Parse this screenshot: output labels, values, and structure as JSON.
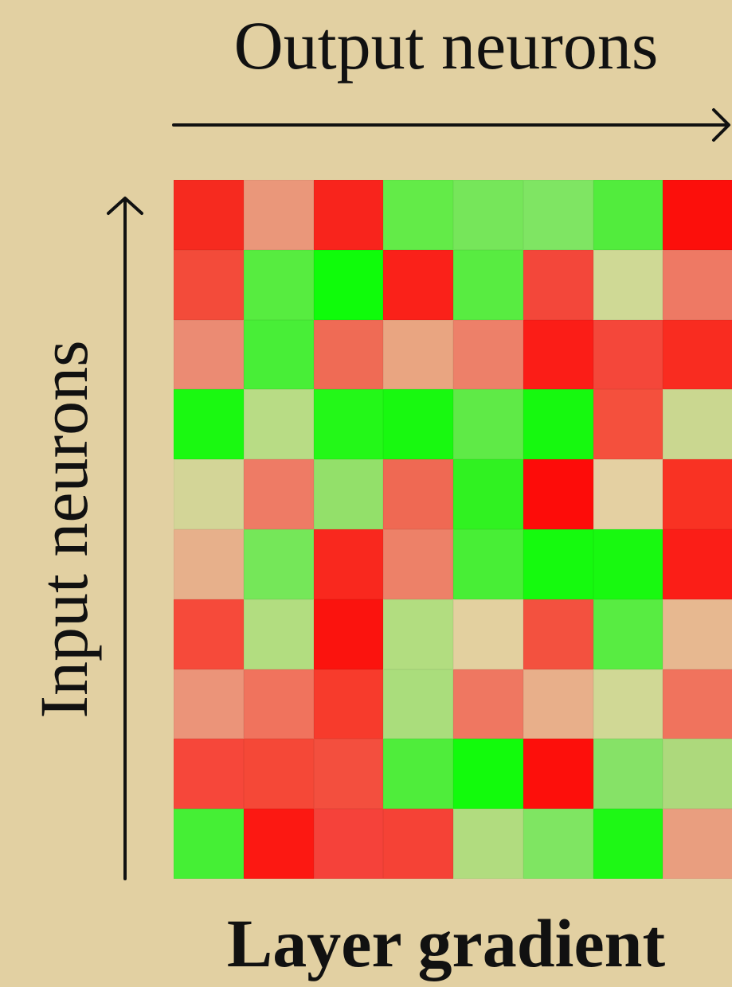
{
  "labels": {
    "top": "Output neurons",
    "left": "Input neurons",
    "bottom": "Layer gradient"
  },
  "grid": {
    "rows": [
      [
        "#f62a1f",
        "#ea977a",
        "#f8241c",
        "#63eb48",
        "#76e65a",
        "#7fe563",
        "#52ec3d",
        "#fc0f0b"
      ],
      [
        "#f34b3a",
        "#57ec40",
        "#0ffc0a",
        "#fa2119",
        "#58ec41",
        "#f3473a",
        "#cfd995",
        "#ee7964"
      ],
      [
        "#eb8b73",
        "#48ee37",
        "#ef6b55",
        "#e9a581",
        "#ed8069",
        "#fb1d17",
        "#f4473a",
        "#f92c20"
      ],
      [
        "#1af911",
        "#b8dc85",
        "#23f818",
        "#18f910",
        "#5fea47",
        "#16f90f",
        "#f4503d",
        "#cad790"
      ],
      [
        "#d3d597",
        "#ee7b65",
        "#93e06a",
        "#ef6953",
        "#30f221",
        "#fd0c09",
        "#e4d0a2",
        "#f93223"
      ],
      [
        "#e7b08b",
        "#75e759",
        "#f9281e",
        "#ed8168",
        "#48ee36",
        "#15fa0e",
        "#18f910",
        "#fb1e17"
      ],
      [
        "#f64a3a",
        "#b2dd80",
        "#fb130e",
        "#b2dd80",
        "#e3d09f",
        "#f3513f",
        "#58ec42",
        "#e7b890"
      ],
      [
        "#eb9479",
        "#f0735d",
        "#f73b2c",
        "#aadd7c",
        "#ef7761",
        "#e8af8a",
        "#d0d895",
        "#f0735d"
      ],
      [
        "#f6473a",
        "#f54837",
        "#f34f3e",
        "#4fed3b",
        "#12fb0c",
        "#fd0f0b",
        "#86e267",
        "#add97c"
      ],
      [
        "#45ef35",
        "#fc1812",
        "#f5423a",
        "#f54236",
        "#b1dc7f",
        "#7fe562",
        "#1ef815",
        "#e99e7f"
      ]
    ]
  }
}
